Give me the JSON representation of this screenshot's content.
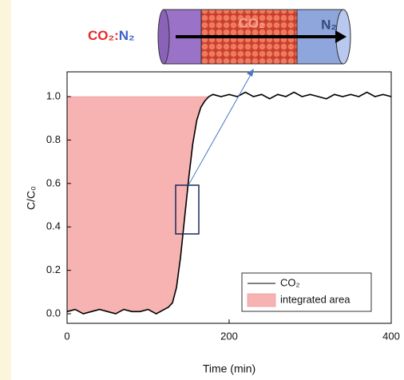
{
  "chart_data": {
    "type": "line",
    "x_label": "Time (min)",
    "y_label": "C/C₀",
    "x": [
      0,
      10,
      20,
      30,
      40,
      50,
      60,
      70,
      80,
      90,
      100,
      110,
      120,
      125,
      130,
      135,
      140,
      145,
      150,
      155,
      160,
      165,
      170,
      175,
      180,
      190,
      200,
      210,
      220,
      230,
      240,
      250,
      260,
      270,
      280,
      290,
      300,
      310,
      320,
      330,
      340,
      350,
      360,
      370,
      380,
      390,
      400
    ],
    "series": [
      {
        "name": "CO₂",
        "color": "#000000",
        "values": [
          0.01,
          0.02,
          0.0,
          0.01,
          0.02,
          0.01,
          0.0,
          0.02,
          0.01,
          0.01,
          0.02,
          0.0,
          0.02,
          0.03,
          0.05,
          0.12,
          0.26,
          0.44,
          0.62,
          0.78,
          0.89,
          0.95,
          0.98,
          1.0,
          1.01,
          1.0,
          1.01,
          1.0,
          1.02,
          1.0,
          1.01,
          0.99,
          1.01,
          1.0,
          1.02,
          1.0,
          1.01,
          1.0,
          0.99,
          1.01,
          1.0,
          1.01,
          1.0,
          1.02,
          1.0,
          1.01,
          1.0
        ]
      }
    ],
    "fill_area": {
      "name": "integrated area",
      "color": "#f7b2b2",
      "level": 1.0
    },
    "xlim": [
      0,
      400
    ],
    "xticks": [
      0,
      200,
      400
    ],
    "ylim": [
      -0.044,
      1.114
    ],
    "yticks": [
      {
        "value": 0,
        "label": "0.0"
      },
      {
        "value": 0.2,
        "label": "0.2"
      },
      {
        "value": 0.4,
        "label": "0.4"
      },
      {
        "value": 0.6,
        "label": "0.6"
      },
      {
        "value": 0.8,
        "label": "0.8"
      },
      {
        "value": 1,
        "label": "1.0"
      }
    ],
    "legend": "lower right"
  },
  "diagram": {
    "feed_gas_1": "CO₂",
    "separator": ":",
    "feed_gas_2": "N₂",
    "bed_label": "CO₂",
    "outlet_label": "N₂"
  }
}
